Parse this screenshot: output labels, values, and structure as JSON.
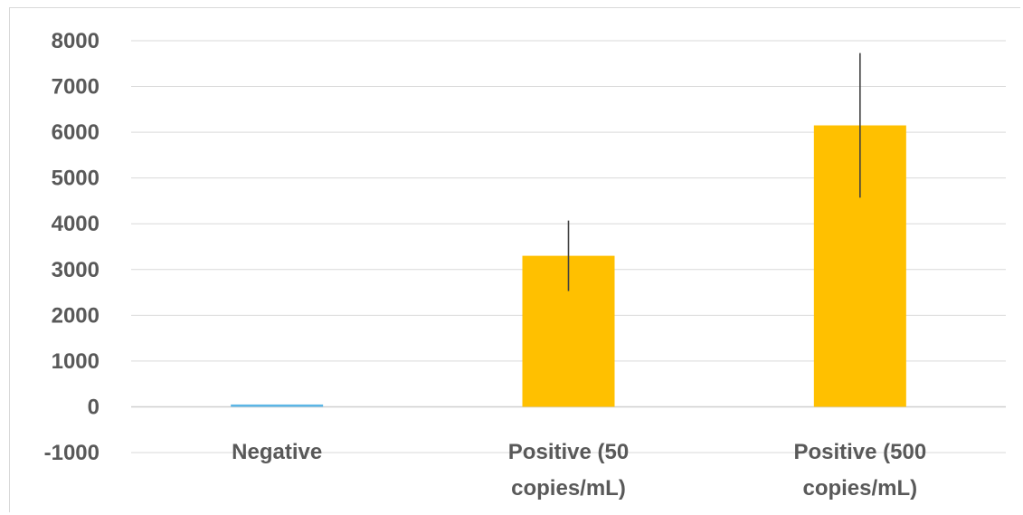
{
  "chart_data": {
    "type": "bar",
    "categories": [
      [
        "Negative"
      ],
      [
        "Positive (50",
        "copies/mL)"
      ],
      [
        "Positive (500",
        "copies/mL)"
      ]
    ],
    "values": [
      50,
      3300,
      6150
    ],
    "errors": [
      0,
      770,
      1580
    ],
    "colors": [
      "#5bb6e6",
      "#ffc000",
      "#ffc000"
    ],
    "ylim": [
      -1000,
      8000
    ],
    "yticks": [
      8000,
      7000,
      6000,
      5000,
      4000,
      3000,
      2000,
      1000,
      0,
      -1000
    ],
    "grid": true,
    "title": "",
    "xlabel": "",
    "ylabel": ""
  }
}
